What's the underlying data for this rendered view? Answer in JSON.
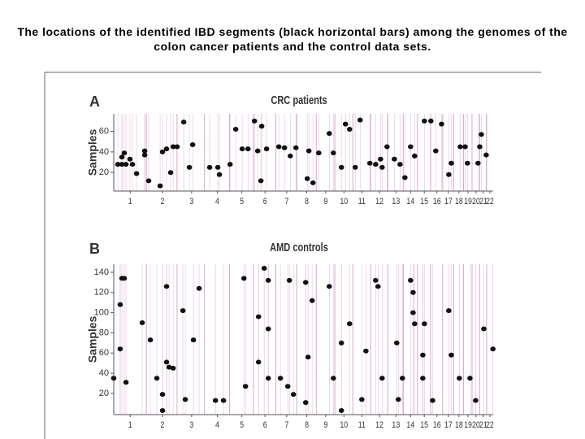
{
  "title": "The locations of the identified IBD segments (black horizontal bars) among the genomes of the colon cancer patients and the control data sets.",
  "chart_data": [
    {
      "type": "scatter",
      "panel": "A",
      "title": "CRC patients",
      "y_label": "Samples",
      "color": "#111111",
      "line_color": "#d9a6cc",
      "xlim": [
        0,
        2880
      ],
      "ylim": [
        2,
        77
      ],
      "yticks": [
        20,
        40,
        60
      ],
      "xticks": [
        {
          "value": 125,
          "label": "1"
        },
        {
          "value": 370,
          "label": "2"
        },
        {
          "value": 591,
          "label": "3"
        },
        {
          "value": 786,
          "label": "4"
        },
        {
          "value": 972,
          "label": "5"
        },
        {
          "value": 1148,
          "label": "6"
        },
        {
          "value": 1313,
          "label": "7"
        },
        {
          "value": 1465,
          "label": "8"
        },
        {
          "value": 1609,
          "label": "9"
        },
        {
          "value": 1747,
          "label": "10"
        },
        {
          "value": 1883,
          "label": "11"
        },
        {
          "value": 2017,
          "label": "12"
        },
        {
          "value": 2142,
          "label": "13"
        },
        {
          "value": 2253,
          "label": "14"
        },
        {
          "value": 2357,
          "label": "15"
        },
        {
          "value": 2453,
          "label": "16"
        },
        {
          "value": 2540,
          "label": "17"
        },
        {
          "value": 2620,
          "label": "18"
        },
        {
          "value": 2689,
          "label": "19"
        },
        {
          "value": 2750,
          "label": "20"
        },
        {
          "value": 2805,
          "label": "21"
        },
        {
          "value": 2855,
          "label": "22"
        }
      ],
      "x": [
        31,
        62,
        93,
        142,
        62,
        80,
        123,
        173,
        235,
        235,
        265,
        352,
        370,
        401,
        432,
        451,
        481,
        531,
        574,
        599,
        728,
        790,
        802,
        883,
        926,
        975,
        1019,
        1068,
        1093,
        1117,
        1160,
        1123,
        1253,
        1296,
        1340,
        1383,
        1481,
        1469,
        1512,
        1556,
        1636,
        1667,
        1728,
        1759,
        1790,
        1833,
        1870,
        1944,
        1988,
        2025,
        2037,
        2074,
        2130,
        2173,
        2210,
        2253,
        2284,
        2358,
        2407,
        2444,
        2488,
        2543,
        2562,
        2630,
        2667,
        2685,
        2765,
        2778,
        2790,
        2827
      ],
      "values": [
        28,
        28,
        28,
        28,
        35,
        39,
        33,
        19,
        37,
        41,
        12,
        7,
        40,
        43,
        20,
        45,
        45,
        69,
        25,
        47,
        25,
        25,
        18,
        28,
        62,
        43,
        43,
        70,
        41,
        12,
        43,
        65,
        45,
        44,
        36,
        44,
        41,
        14,
        10,
        39,
        58,
        39,
        25,
        67,
        62,
        25,
        71,
        29,
        28,
        33,
        25,
        45,
        33,
        28,
        15,
        45,
        36,
        70,
        70,
        41,
        67,
        18,
        29,
        45,
        45,
        29,
        29,
        45,
        57,
        37
      ]
    },
    {
      "type": "scatter",
      "panel": "B",
      "title": "AMD controls",
      "y_label": "Samples",
      "color": "#111111",
      "line_color": "#d9a6cc",
      "xlim": [
        0,
        2880
      ],
      "ylim": [
        -1,
        148
      ],
      "yticks": [
        20,
        40,
        60,
        80,
        100,
        120,
        140
      ],
      "xticks": [
        {
          "value": 125,
          "label": "1"
        },
        {
          "value": 370,
          "label": "2"
        },
        {
          "value": 591,
          "label": "3"
        },
        {
          "value": 786,
          "label": "4"
        },
        {
          "value": 972,
          "label": "5"
        },
        {
          "value": 1148,
          "label": "6"
        },
        {
          "value": 1313,
          "label": "7"
        },
        {
          "value": 1465,
          "label": "8"
        },
        {
          "value": 1609,
          "label": "9"
        },
        {
          "value": 1747,
          "label": "10"
        },
        {
          "value": 1883,
          "label": "11"
        },
        {
          "value": 2017,
          "label": "12"
        },
        {
          "value": 2142,
          "label": "13"
        },
        {
          "value": 2253,
          "label": "14"
        },
        {
          "value": 2357,
          "label": "15"
        },
        {
          "value": 2453,
          "label": "16"
        },
        {
          "value": 2540,
          "label": "17"
        },
        {
          "value": 2620,
          "label": "18"
        },
        {
          "value": 2689,
          "label": "19"
        },
        {
          "value": 2750,
          "label": "20"
        },
        {
          "value": 2805,
          "label": "21"
        },
        {
          "value": 2855,
          "label": "22"
        }
      ],
      "x": [
        62,
        80,
        49,
        49,
        93,
        0,
        216,
        278,
        327,
        370,
        370,
        401,
        401,
        420,
        451,
        525,
        543,
        605,
        648,
        772,
        833,
        988,
        1000,
        1099,
        1099,
        1142,
        1173,
        1173,
        1265,
        1173,
        1321,
        1333,
        1364,
        1457,
        1475,
        1457,
        1506,
        1636,
        1667,
        1728,
        1728,
        1790,
        1883,
        1914,
        1988,
        2006,
        2037,
        2148,
        2160,
        2191,
        2253,
        2272,
        2272,
        2284,
        2358,
        2346,
        2346,
        2420,
        2543,
        2562,
        2623,
        2704,
        2747,
        2809,
        2878
      ],
      "values": [
        134,
        134,
        108,
        64,
        31,
        35,
        90,
        73,
        35,
        19,
        3,
        126,
        51,
        46,
        45,
        102,
        14,
        73,
        124,
        13,
        13,
        134,
        27,
        96,
        51,
        144,
        132,
        35,
        35,
        84,
        27,
        132,
        19,
        130,
        56,
        11,
        112,
        126,
        35,
        70,
        3,
        89,
        14,
        62,
        132,
        126,
        35,
        70,
        14,
        35,
        132,
        120,
        100,
        89,
        89,
        58,
        35,
        13,
        102,
        58,
        35,
        35,
        13,
        84,
        64
      ]
    }
  ]
}
